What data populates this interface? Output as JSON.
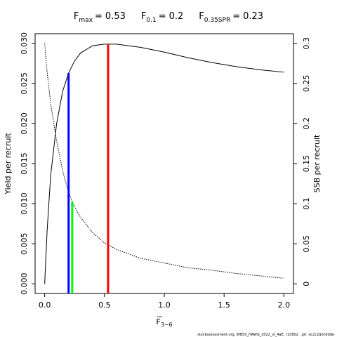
{
  "chart_data": {
    "type": "line",
    "title_parts": [
      {
        "symbol": "F",
        "subscript": "max",
        "operator": "=",
        "value": 0.53,
        "y": 0.0299,
        "color": "#ff0000",
        "axis": "y"
      },
      {
        "symbol": "F",
        "subscript": "0.1",
        "operator": "=",
        "value": 0.2,
        "y": 0.0263,
        "color": "#0000ff",
        "axis": "y"
      },
      {
        "symbol": "F",
        "subscript": "0.35SPR",
        "operator": "=",
        "value": 0.23,
        "y": 0.1023,
        "color": "#00ff00",
        "axis": "y2"
      }
    ],
    "xlabel": {
      "symbol": "F",
      "subscript": "3−6"
    },
    "ylabel": "Yield per recruit",
    "y2label": "SSB per recruit",
    "footer": "stockassessment.org, WBSS_HAWG_2022_sf_4aE, r15802 , git: ec2c2a0c6dde",
    "x": [
      0,
      0.02,
      0.05,
      0.1,
      0.15,
      0.2,
      0.25,
      0.3,
      0.4,
      0.5,
      0.6,
      0.8,
      1.0,
      1.2,
      1.4,
      1.6,
      1.8,
      2.0
    ],
    "series": [
      {
        "color": "#000000",
        "dash": false,
        "values": [
          0,
          0.0065,
          0.0135,
          0.02,
          0.024,
          0.0263,
          0.0278,
          0.0288,
          0.0297,
          0.0299,
          0.0299,
          0.0295,
          0.0289,
          0.0282,
          0.0276,
          0.0271,
          0.0267,
          0.0264
        ]
      },
      {
        "color": "#000000",
        "dash": true,
        "axis": "y2",
        "values": [
          0.3,
          0.265,
          0.225,
          0.178,
          0.141,
          0.114,
          0.096,
          0.083,
          0.064,
          0.051,
          0.043,
          0.032,
          0.026,
          0.02,
          0.017,
          0.013,
          0.01,
          0.007
        ]
      }
    ],
    "xlim": [
      -0.08,
      2.08
    ],
    "ylim": [
      -0.0012,
      0.0312
    ],
    "y2lim": [
      -0.012,
      0.312
    ],
    "xticks": [
      {
        "value": 0,
        "label": "0.0"
      },
      {
        "value": 0.5,
        "label": "0.5"
      },
      {
        "value": 1,
        "label": "1.0"
      },
      {
        "value": 1.5,
        "label": "1.5"
      },
      {
        "value": 2,
        "label": "2.0"
      }
    ],
    "yticks": [
      {
        "value": 0,
        "label": "0.000"
      },
      {
        "value": 0.005,
        "label": "0.005"
      },
      {
        "value": 0.01,
        "label": "0.010"
      },
      {
        "value": 0.015,
        "label": "0.015"
      },
      {
        "value": 0.02,
        "label": "0.020"
      },
      {
        "value": 0.025,
        "label": "0.025"
      },
      {
        "value": 0.03,
        "label": "0.030"
      }
    ],
    "y2ticks": [
      0,
      0.05,
      0.1,
      0.15,
      0.2,
      0.25,
      0.3
    ]
  }
}
